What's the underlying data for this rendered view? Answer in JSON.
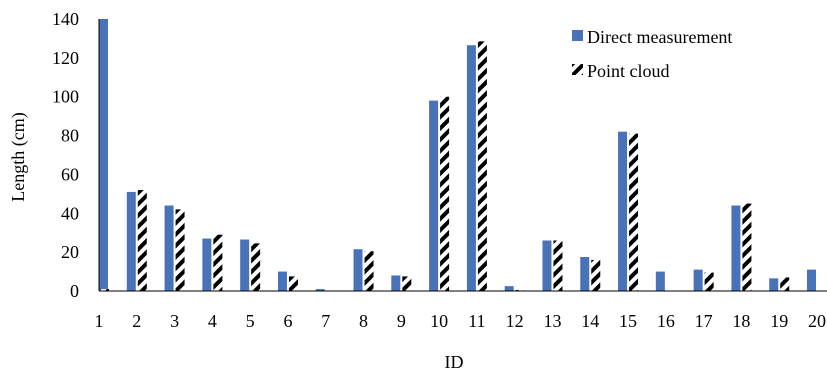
{
  "chart_data": {
    "type": "bar",
    "title": "",
    "xlabel": "ID",
    "ylabel": "Length (cm)",
    "ylim": [
      0,
      140
    ],
    "yticks": [
      0,
      20,
      40,
      60,
      80,
      100,
      120,
      140
    ],
    "categories": [
      "1",
      "2",
      "3",
      "4",
      "5",
      "6",
      "7",
      "8",
      "9",
      "10",
      "11",
      "12",
      "13",
      "14",
      "15",
      "16",
      "17",
      "18",
      "19",
      "20"
    ],
    "series": [
      {
        "name": "Direct measurement",
        "color": "#4a72b8",
        "pattern": "solid",
        "values": [
          140,
          51,
          44,
          27,
          26.5,
          10,
          1,
          21.5,
          8,
          98,
          126.5,
          2.5,
          26,
          17.5,
          82,
          10,
          11,
          44,
          6.5,
          11
        ]
      },
      {
        "name": "Point cloud",
        "color": "#000000",
        "pattern": "diagonal-hatch",
        "values": [
          1,
          52,
          42,
          29,
          24.5,
          7.5,
          0,
          20.5,
          7.5,
          100,
          128.5,
          0.5,
          26,
          16,
          81,
          0,
          9.5,
          45,
          7,
          0
        ]
      }
    ],
    "legend_position": "top-right",
    "grid": false
  }
}
